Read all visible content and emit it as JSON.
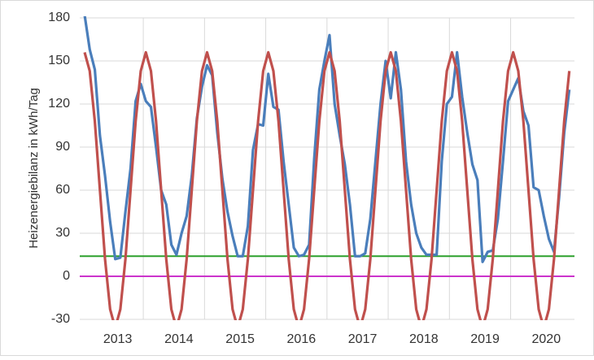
{
  "chart_data": {
    "type": "line",
    "y_label": "Heizenergiebilanz in kWh/Tag",
    "categories": [
      null,
      null,
      null,
      null,
      null,
      null,
      "2013",
      null,
      null,
      null,
      null,
      null,
      null,
      null,
      null,
      null,
      null,
      null,
      "2014",
      null,
      null,
      null,
      null,
      null,
      null,
      null,
      null,
      null,
      null,
      null,
      "2015",
      null,
      null,
      null,
      null,
      null,
      null,
      null,
      null,
      null,
      null,
      null,
      "2016",
      null,
      null,
      null,
      null,
      null,
      null,
      null,
      null,
      null,
      null,
      null,
      "2017",
      null,
      null,
      null,
      null,
      null,
      null,
      null,
      null,
      null,
      null,
      null,
      "2018",
      null,
      null,
      null,
      null,
      null,
      null,
      null,
      null,
      null,
      null,
      null,
      "2019",
      null,
      null,
      null,
      null,
      null,
      null,
      null,
      null,
      null,
      null,
      null,
      "2020",
      null,
      null,
      null,
      null,
      null
    ],
    "series": [
      {
        "color": "#4a7ebb",
        "values": [
          182,
          158,
          144,
          98,
          70,
          38,
          12,
          13,
          45,
          75,
          122,
          134,
          122,
          118,
          90,
          60,
          50,
          22,
          15,
          30,
          42,
          70,
          110,
          132,
          147,
          140,
          100,
          68,
          45,
          28,
          14,
          14,
          35,
          88,
          106,
          105,
          141,
          118,
          116,
          80,
          50,
          20,
          14,
          15,
          22,
          82,
          130,
          150,
          168,
          120,
          98,
          78,
          50,
          14,
          14,
          16,
          40,
          80,
          120,
          150,
          124,
          156,
          130,
          80,
          50,
          30,
          20,
          15,
          15,
          15,
          80,
          120,
          125,
          156,
          125,
          100,
          78,
          67,
          10,
          17,
          18,
          40,
          80,
          122,
          130,
          138,
          115,
          105,
          62,
          60,
          42,
          26,
          17,
          55,
          100,
          130
        ]
      },
      {
        "color": "#c0504d",
        "values": [
          156,
          143,
          108,
          60,
          12,
          -23,
          -36,
          -23,
          12,
          60,
          108,
          143,
          156,
          143,
          108,
          60,
          12,
          -23,
          -36,
          -23,
          12,
          60,
          108,
          143,
          156,
          143,
          108,
          60,
          12,
          -23,
          -36,
          -23,
          12,
          60,
          108,
          143,
          156,
          143,
          108,
          60,
          12,
          -23,
          -36,
          -23,
          12,
          60,
          108,
          143,
          156,
          143,
          108,
          60,
          12,
          -23,
          -36,
          -23,
          12,
          60,
          108,
          143,
          156,
          143,
          108,
          60,
          12,
          -23,
          -36,
          -23,
          12,
          60,
          108,
          143,
          156,
          143,
          108,
          60,
          12,
          -23,
          -36,
          -23,
          12,
          60,
          108,
          143,
          156,
          143,
          108,
          60,
          12,
          -23,
          -36,
          -23,
          12,
          60,
          108,
          143
        ]
      }
    ],
    "hlines": [
      {
        "value": 14,
        "color": "#2ca02c"
      },
      {
        "value": 0,
        "color": "#cc33cc"
      }
    ],
    "ylim": [
      -30,
      180
    ],
    "yticks": [
      -30,
      0,
      30,
      60,
      90,
      120,
      150,
      180
    ],
    "grid": true
  }
}
